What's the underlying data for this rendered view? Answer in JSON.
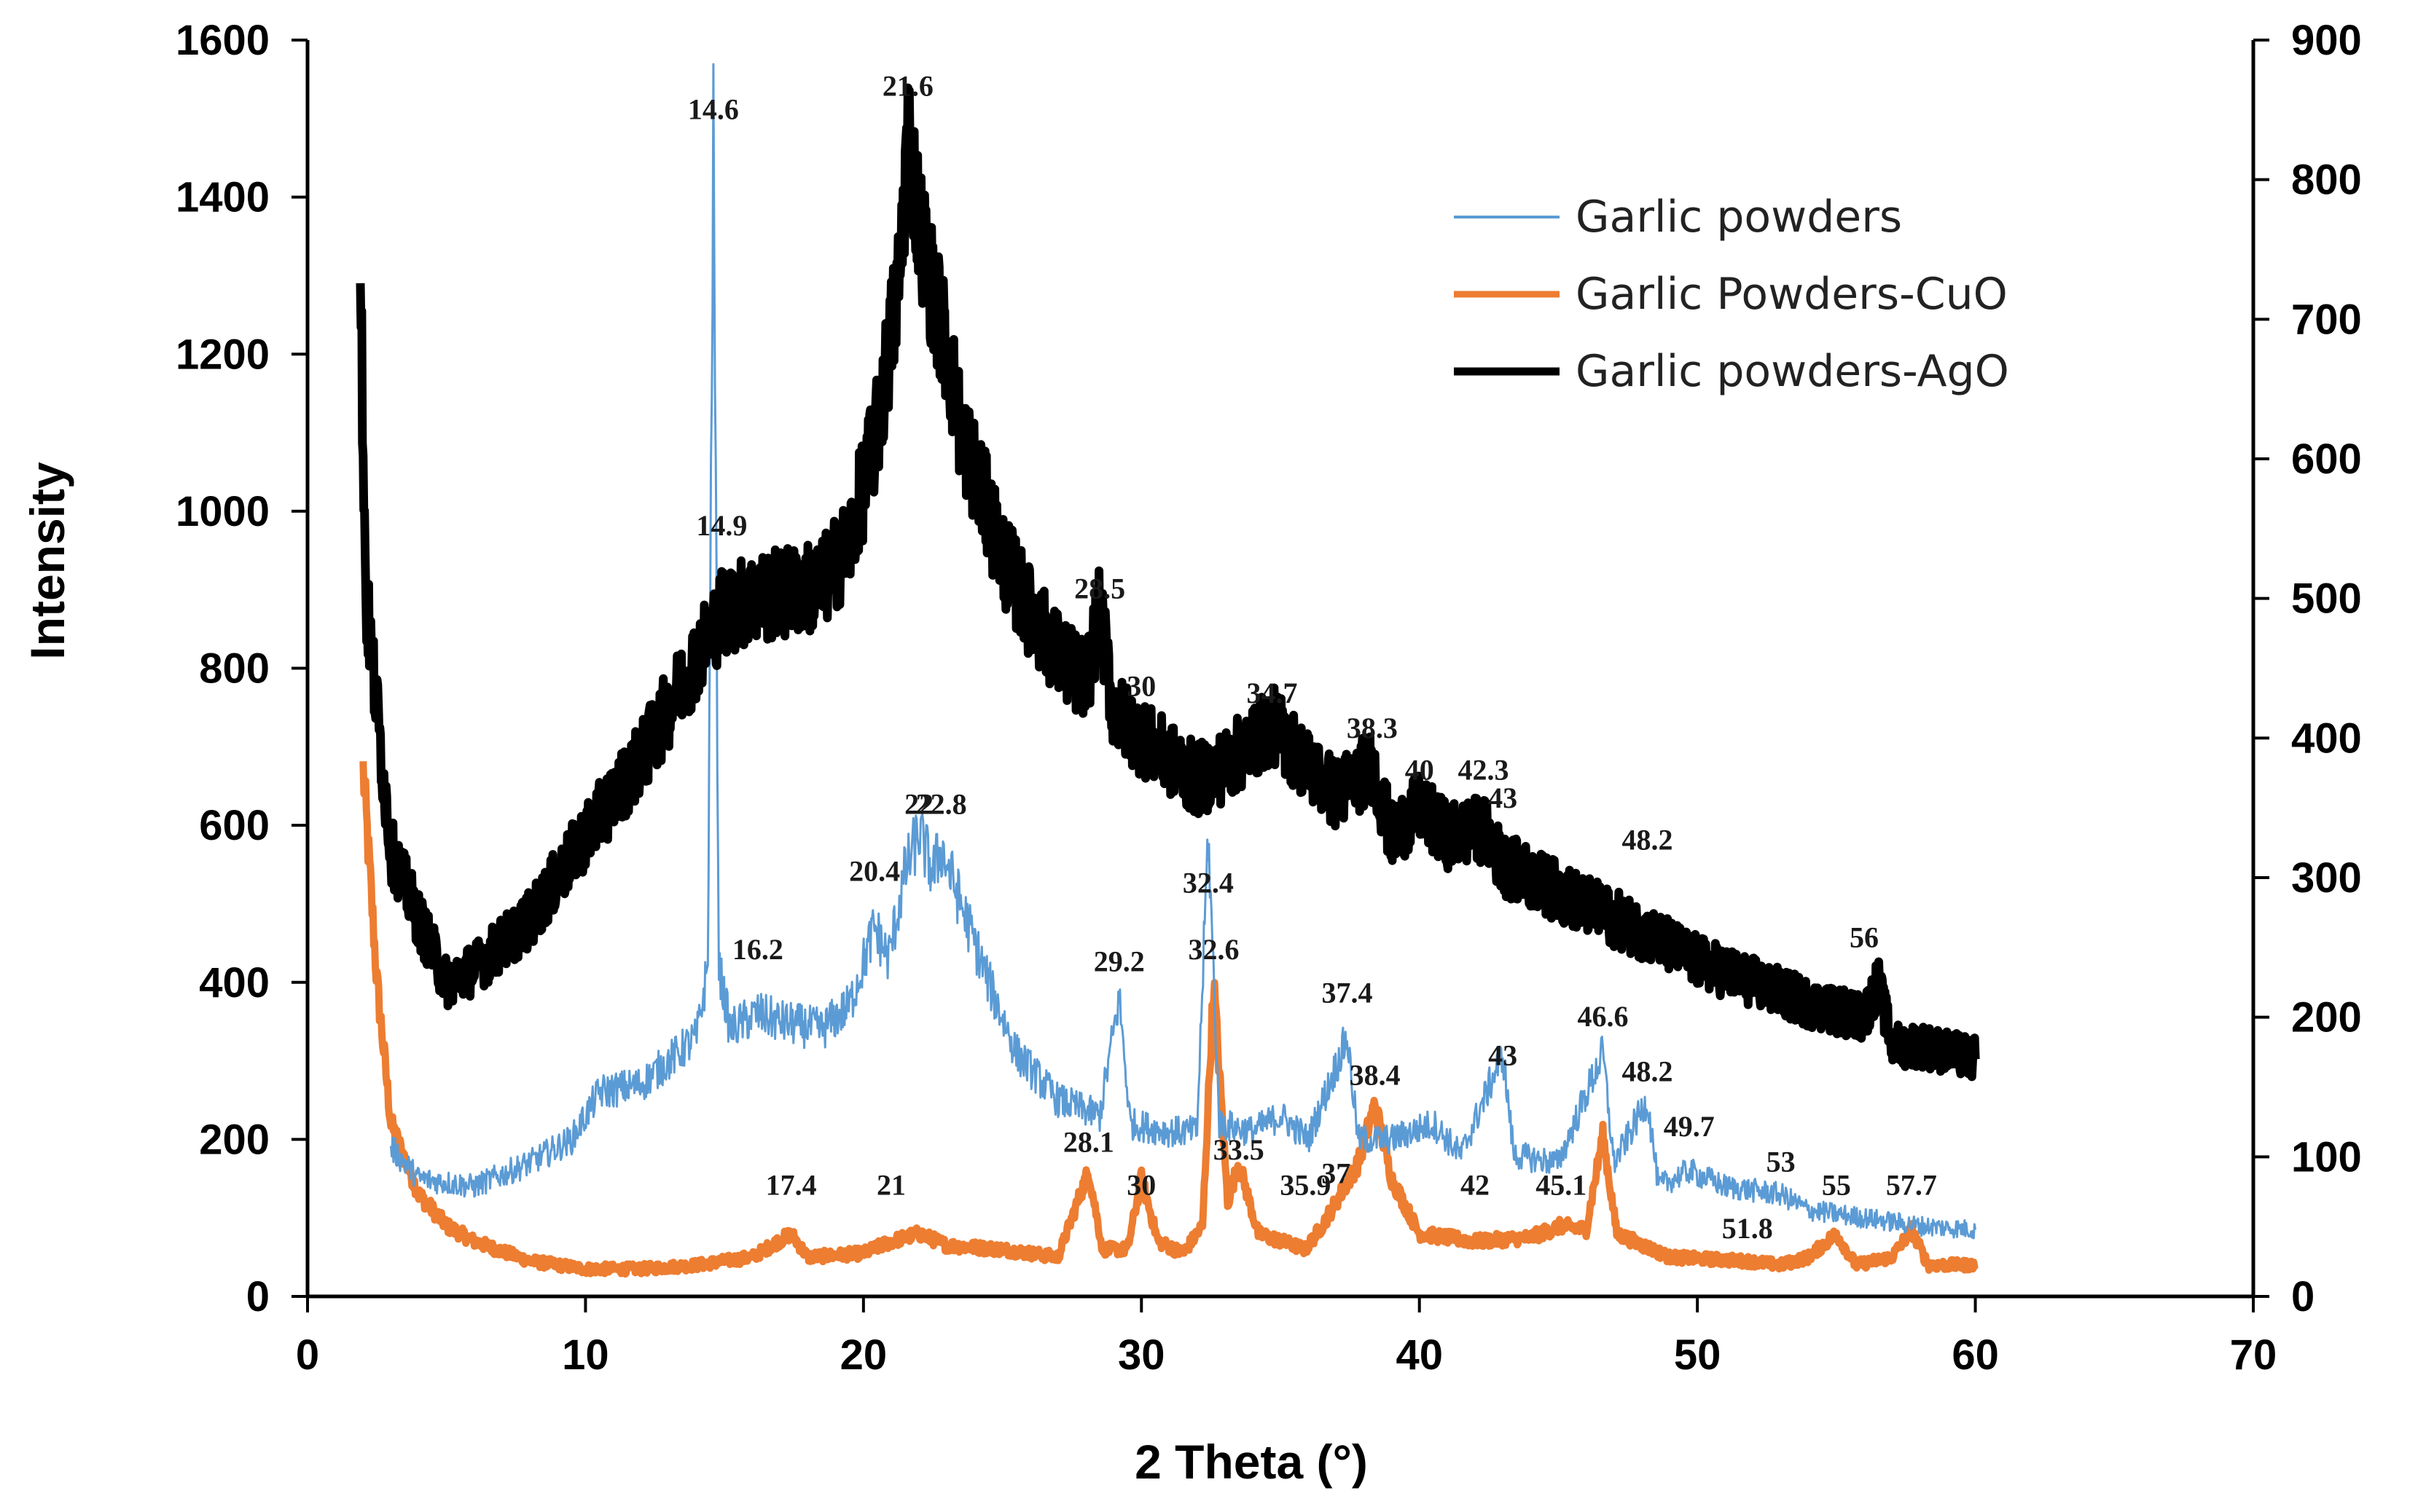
{
  "chart_data": {
    "type": "line",
    "title": "",
    "xlabel": "2 Theta (°)",
    "ylabel": "Intensity",
    "xlim": [
      0,
      70
    ],
    "ylim": [
      0,
      1600
    ],
    "y2lim": [
      0,
      900
    ],
    "x_ticks": [
      "0",
      "10",
      "20",
      "30",
      "40",
      "50",
      "60",
      "70"
    ],
    "y_ticks": [
      "0",
      "200",
      "400",
      "600",
      "800",
      "1000",
      "1200",
      "1400",
      "1600"
    ],
    "y2_ticks": [
      "0",
      "100",
      "200",
      "300",
      "400",
      "500",
      "600",
      "700",
      "800",
      "900"
    ],
    "legend_position": "top-right",
    "series": [
      {
        "name": "Garlic powders",
        "axis": "left",
        "color": "#5B9BD5",
        "points": [
          [
            3,
            190
          ],
          [
            4,
            150
          ],
          [
            6,
            140
          ],
          [
            8,
            170
          ],
          [
            9.5,
            200
          ],
          [
            10.5,
            260
          ],
          [
            12,
            270
          ],
          [
            14,
            330
          ],
          [
            14.4,
            420
          ],
          [
            14.6,
            1480
          ],
          [
            14.8,
            420
          ],
          [
            15.2,
            340
          ],
          [
            16.2,
            360
          ],
          [
            17,
            350
          ],
          [
            18.5,
            340
          ],
          [
            19.5,
            370
          ],
          [
            20.4,
            470
          ],
          [
            20.9,
            430
          ],
          [
            21.5,
            540
          ],
          [
            22,
            590
          ],
          [
            22.5,
            540
          ],
          [
            22.8,
            570
          ],
          [
            23.5,
            500
          ],
          [
            24.5,
            400
          ],
          [
            25.5,
            310
          ],
          [
            27,
            250
          ],
          [
            28.5,
            230
          ],
          [
            29.2,
            380
          ],
          [
            29.6,
            220
          ],
          [
            31,
            210
          ],
          [
            32,
            210
          ],
          [
            32.4,
            590
          ],
          [
            32.8,
            220
          ],
          [
            34,
            210
          ],
          [
            35,
            230
          ],
          [
            36,
            200
          ],
          [
            37.4,
            330
          ],
          [
            37.8,
            200
          ],
          [
            39,
            200
          ],
          [
            40.5,
            220
          ],
          [
            41.5,
            180
          ],
          [
            43,
            310
          ],
          [
            43.4,
            180
          ],
          [
            45,
            170
          ],
          [
            46.6,
            310
          ],
          [
            47,
            170
          ],
          [
            48.2,
            250
          ],
          [
            48.6,
            140
          ],
          [
            49.7,
            160
          ],
          [
            51,
            140
          ],
          [
            53,
            130
          ],
          [
            54,
            110
          ],
          [
            56,
            100
          ],
          [
            58,
            90
          ],
          [
            60,
            85
          ]
        ],
        "peak_labels": [
          {
            "x": 14.6,
            "y": 1490,
            "text": "14.6"
          },
          {
            "x": 16.2,
            "y": 420,
            "text": "16.2"
          },
          {
            "x": 20.4,
            "y": 520,
            "text": "20.4"
          },
          {
            "x": 22,
            "y": 605,
            "text": "22"
          },
          {
            "x": 22.8,
            "y": 605,
            "text": "22.8"
          },
          {
            "x": 29.2,
            "y": 405,
            "text": "29.2"
          },
          {
            "x": 32.4,
            "y": 505,
            "text": "32.4"
          },
          {
            "x": 32.6,
            "y": 420,
            "text": "32.6"
          },
          {
            "x": 37.4,
            "y": 365,
            "text": "37.4"
          },
          {
            "x": 43,
            "y": 285,
            "text": "43"
          },
          {
            "x": 46.6,
            "y": 335,
            "text": "46.6"
          },
          {
            "x": 48.2,
            "y": 265,
            "text": "48.2"
          },
          {
            "x": 49.7,
            "y": 195,
            "text": "49.7"
          },
          {
            "x": 53,
            "y": 150,
            "text": "53"
          }
        ]
      },
      {
        "name": "Garlic Powders-CuO",
        "axis": "left",
        "color": "#ED7D31",
        "points": [
          [
            2,
            670
          ],
          [
            2.5,
            400
          ],
          [
            3,
            220
          ],
          [
            4,
            130
          ],
          [
            5,
            90
          ],
          [
            6,
            70
          ],
          [
            8,
            45
          ],
          [
            10,
            35
          ],
          [
            12,
            35
          ],
          [
            14,
            40
          ],
          [
            16,
            50
          ],
          [
            17.4,
            80
          ],
          [
            18,
            50
          ],
          [
            20,
            55
          ],
          [
            21,
            70
          ],
          [
            22,
            80
          ],
          [
            23,
            65
          ],
          [
            25,
            60
          ],
          [
            27,
            50
          ],
          [
            28.1,
            160
          ],
          [
            28.6,
            60
          ],
          [
            29.5,
            60
          ],
          [
            30,
            150
          ],
          [
            30.6,
            70
          ],
          [
            31.5,
            55
          ],
          [
            32.2,
            90
          ],
          [
            32.6,
            400
          ],
          [
            33.1,
            120
          ],
          [
            33.5,
            170
          ],
          [
            34.2,
            80
          ],
          [
            35.9,
            60
          ],
          [
            36.5,
            90
          ],
          [
            37,
            120
          ],
          [
            37.8,
            170
          ],
          [
            38.4,
            245
          ],
          [
            39,
            150
          ],
          [
            40,
            80
          ],
          [
            42,
            70
          ],
          [
            44,
            75
          ],
          [
            45.1,
            90
          ],
          [
            46,
            85
          ],
          [
            46.6,
            205
          ],
          [
            47.1,
            80
          ],
          [
            49,
            50
          ],
          [
            51.8,
            45
          ],
          [
            53,
            40
          ],
          [
            54,
            50
          ],
          [
            55,
            80
          ],
          [
            55.7,
            40
          ],
          [
            57,
            50
          ],
          [
            57.7,
            85
          ],
          [
            58.3,
            40
          ],
          [
            60,
            40
          ]
        ],
        "peak_labels": [
          {
            "x": 17.4,
            "y": 120,
            "text": "17.4"
          },
          {
            "x": 21,
            "y": 120,
            "text": "21"
          },
          {
            "x": 28.1,
            "y": 175,
            "text": "28.1"
          },
          {
            "x": 30,
            "y": 120,
            "text": "30"
          },
          {
            "x": 38.4,
            "y": 260,
            "text": "38.4"
          },
          {
            "x": 33.5,
            "y": 165,
            "text": "33.5"
          },
          {
            "x": 35.9,
            "y": 120,
            "text": "35.9"
          },
          {
            "x": 37,
            "y": 135,
            "text": "37"
          },
          {
            "x": 42,
            "y": 120,
            "text": "42"
          },
          {
            "x": 45.1,
            "y": 120,
            "text": "45.1"
          },
          {
            "x": 51.8,
            "y": 65,
            "text": "51.8"
          },
          {
            "x": 55,
            "y": 120,
            "text": "55"
          },
          {
            "x": 57.7,
            "y": 120,
            "text": "57.7"
          }
        ]
      },
      {
        "name": "Garlic powders-AgO",
        "axis": "right",
        "color": "#000000",
        "points": [
          [
            1.9,
            730
          ],
          [
            2.1,
            500
          ],
          [
            3,
            320
          ],
          [
            4,
            270
          ],
          [
            5,
            225
          ],
          [
            6,
            235
          ],
          [
            8,
            270
          ],
          [
            10,
            330
          ],
          [
            12,
            385
          ],
          [
            13.5,
            440
          ],
          [
            14.9,
            490
          ],
          [
            16,
            500
          ],
          [
            17.5,
            505
          ],
          [
            18.5,
            510
          ],
          [
            19.5,
            540
          ],
          [
            20.5,
            620
          ],
          [
            21.3,
            730
          ],
          [
            21.6,
            835
          ],
          [
            22,
            770
          ],
          [
            22.5,
            720
          ],
          [
            23,
            680
          ],
          [
            23.5,
            620
          ],
          [
            24.2,
            580
          ],
          [
            25,
            530
          ],
          [
            26,
            490
          ],
          [
            27,
            460
          ],
          [
            28,
            440
          ],
          [
            28.5,
            490
          ],
          [
            29,
            420
          ],
          [
            30,
            400
          ],
          [
            31,
            385
          ],
          [
            32,
            370
          ],
          [
            33,
            380
          ],
          [
            34.7,
            410
          ],
          [
            36,
            380
          ],
          [
            37,
            360
          ],
          [
            38.3,
            380
          ],
          [
            39,
            330
          ],
          [
            40,
            350
          ],
          [
            41,
            330
          ],
          [
            42.3,
            335
          ],
          [
            43,
            310
          ],
          [
            44,
            300
          ],
          [
            46,
            280
          ],
          [
            48.2,
            260
          ],
          [
            50,
            240
          ],
          [
            52,
            225
          ],
          [
            54,
            210
          ],
          [
            56,
            200
          ],
          [
            56.5,
            225
          ],
          [
            57,
            180
          ],
          [
            58,
            180
          ],
          [
            60,
            170
          ]
        ],
        "peak_labels": [
          {
            "x": 14.9,
            "y": 540,
            "text": "14.9"
          },
          {
            "x": 21.6,
            "y": 855,
            "text": "21.6"
          },
          {
            "x": 28.5,
            "y": 495,
            "text": "28.5"
          },
          {
            "x": 30,
            "y": 425,
            "text": "30"
          },
          {
            "x": 34.7,
            "y": 420,
            "text": "34.7"
          },
          {
            "x": 38.3,
            "y": 395,
            "text": "38.3"
          },
          {
            "x": 40,
            "y": 365,
            "text": "40"
          },
          {
            "x": 42.3,
            "y": 365,
            "text": "42.3"
          },
          {
            "x": 43,
            "y": 345,
            "text": "43"
          },
          {
            "x": 48.2,
            "y": 315,
            "text": "48.2"
          },
          {
            "x": 56,
            "y": 245,
            "text": "56"
          }
        ]
      }
    ]
  }
}
